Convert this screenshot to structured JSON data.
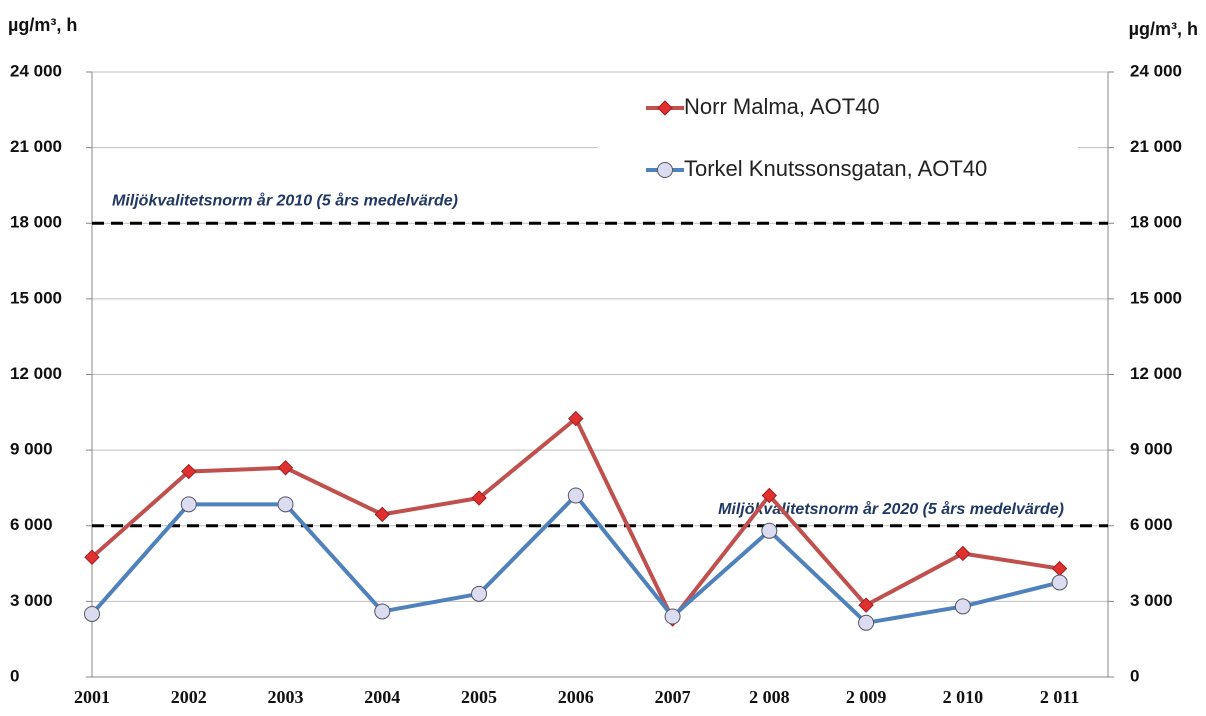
{
  "chart_data": {
    "type": "line",
    "y_label": "µg/m³, h",
    "y2_label": "µg/m³, h",
    "categories": [
      "2001",
      "2002",
      "2003",
      "2004",
      "2005",
      "2006",
      "2007",
      "2 008",
      "2 009",
      "2 010",
      "2 011"
    ],
    "series": [
      {
        "name": "Norr Malma, AOT40",
        "color": "#c0504d",
        "marker": "diamond",
        "values": [
          4750,
          8150,
          8300,
          6450,
          7100,
          10250,
          2300,
          7200,
          2850,
          4900,
          4300
        ]
      },
      {
        "name": "Torkel Knutssonsgatan, AOT40",
        "color": "#4f81bd",
        "marker": "circle",
        "values": [
          2500,
          6850,
          6850,
          2600,
          3300,
          7200,
          2400,
          5800,
          2150,
          2800,
          3750
        ]
      }
    ],
    "reference_lines": [
      {
        "value": 18000,
        "label": "Miljökvalitetsnorm år 2010 (5 års medelvärde)"
      },
      {
        "value": 6000,
        "label": "Miljökvalitetsnorm år 2020 (5 års medelvärde)"
      }
    ],
    "ylim": [
      0,
      24000
    ],
    "yticks": [
      0,
      {
        "value": 3000,
        "label": "3 000"
      },
      {
        "value": 6000,
        "label": "6 000"
      },
      {
        "value": 9000,
        "label": "9 000"
      },
      {
        "value": 12000,
        "label": "12 000"
      },
      {
        "value": 15000,
        "label": "15 000"
      },
      {
        "value": 18000,
        "label": "18 000"
      },
      {
        "value": 21000,
        "label": "21 000"
      },
      {
        "value": 24000,
        "label": "24 000"
      }
    ],
    "y2lim": [
      0,
      24000
    ],
    "y2ticks": [
      0,
      {
        "value": 3000,
        "label": "3 000"
      },
      {
        "value": 6000,
        "label": "6 000"
      },
      {
        "value": 9000,
        "label": "9 000"
      },
      {
        "value": 12000,
        "label": "12 000"
      },
      {
        "value": 15000,
        "label": "15 000"
      },
      {
        "value": 18000,
        "label": "18 000"
      },
      {
        "value": 21000,
        "label": "21 000"
      },
      {
        "value": 24000,
        "label": "24 000"
      }
    ],
    "grid": true,
    "legend": "upper right"
  }
}
